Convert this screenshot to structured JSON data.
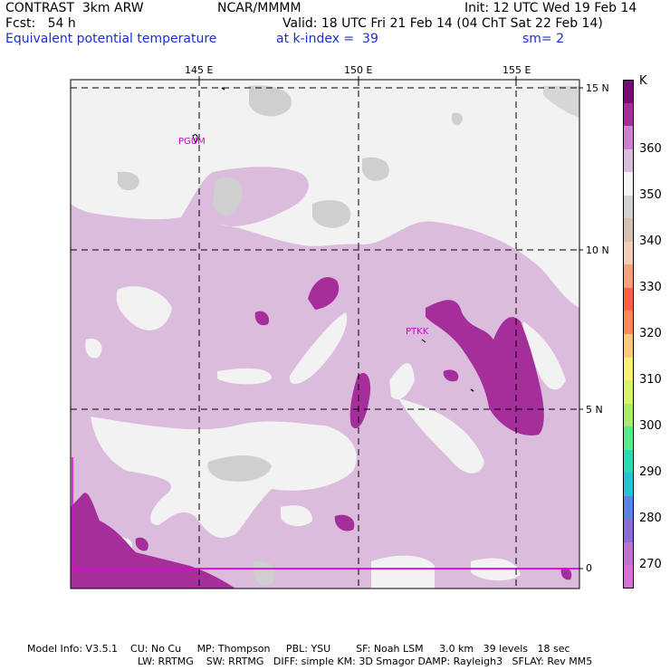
{
  "header": {
    "model": "CONTRAST  3km ARW",
    "org": "NCAR/MMMM",
    "init": "Init: 12 UTC Wed 19 Feb 14",
    "fcst": "Fcst:   54 h",
    "valid": "Valid: 18 UTC Fri 21 Feb 14 (04 ChT Sat 22 Feb 14)",
    "field": "Equivalent potential temperature",
    "level": "at k-index =  39",
    "smooth": "sm= 2"
  },
  "map": {
    "lon_labels": [
      "145 E",
      "150 E",
      "155 E"
    ],
    "lat_labels": [
      "15 N",
      "10 N",
      "5 N",
      "0"
    ],
    "stations": [
      "PGUM",
      "PTKK"
    ]
  },
  "colorbar": {
    "unit": "K",
    "labels": [
      "360",
      "350",
      "340",
      "330",
      "320",
      "310",
      "300",
      "290",
      "280",
      "270"
    ],
    "colors": [
      "#7a0a78",
      "#a52e9a",
      "#cf80cf",
      "#dcbcdc",
      "#f4f4f4",
      "#d2d2d2",
      "#d6c2b2",
      "#f4cdb4",
      "#f6a27a",
      "#ff6142",
      "#fe8a58",
      "#ffc87a",
      "#f8f07a",
      "#d7f36a",
      "#a8ec6a",
      "#5bea8a",
      "#2ed9b8",
      "#2ac1d8",
      "#5a86e2",
      "#8a6ed8",
      "#c070d4",
      "#d870d8"
    ]
  },
  "footer": {
    "line1": "Model Info: V3.5.1    CU: No Cu     MP: Thompson     PBL: YSU        SF: Noah LSM     3.0 km   39 levels   18 sec",
    "line2": "LW: RRTMG    SW: RRTMG   DIFF: simple KM: 3D Smagor DAMP: Rayleigh3   SFLAY: Rev MM5"
  }
}
